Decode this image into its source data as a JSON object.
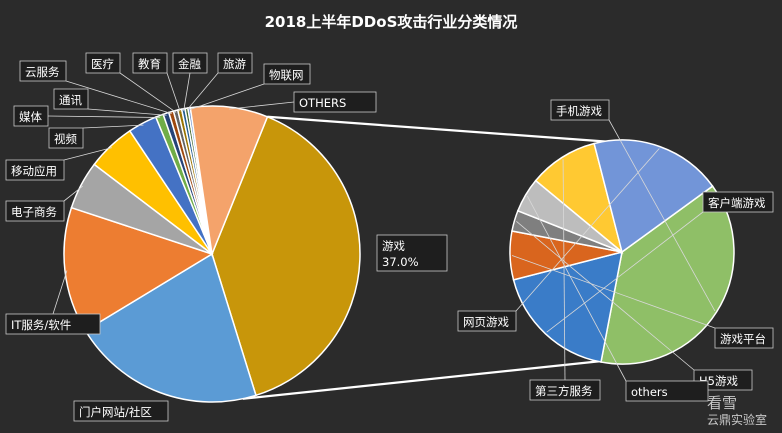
{
  "chart_data": {
    "type": "pie-of-pie",
    "title": "2018上半年DDoS攻击行业分类情况",
    "main_pie": {
      "slices": [
        {
          "name": "游戏",
          "value": 37.0,
          "label_pct": "37.0%",
          "color": "#C8960A"
        },
        {
          "name": "门户网站/社区",
          "value": 20.0,
          "color": "#5B9BD5"
        },
        {
          "name": "IT服务/软件",
          "value": 13.0,
          "color": "#ED7D31"
        },
        {
          "name": "电子商务",
          "value": 5.0,
          "color": "#A5A5A5"
        },
        {
          "name": "移动应用",
          "value": 5.0,
          "color": "#FFC000"
        },
        {
          "name": "视频",
          "value": 3.0,
          "color": "#4472C4"
        },
        {
          "name": "媒体",
          "value": 0.8,
          "color": "#70AD47"
        },
        {
          "name": "通讯",
          "value": 0.6,
          "color": "#264478"
        },
        {
          "name": "云服务",
          "value": 0.5,
          "color": "#9E480E"
        },
        {
          "name": "医疗",
          "value": 0.45,
          "color": "#636363"
        },
        {
          "name": "教育",
          "value": 0.4,
          "color": "#997300"
        },
        {
          "name": "金融",
          "value": 0.35,
          "color": "#255E91"
        },
        {
          "name": "旅游",
          "value": 0.3,
          "color": "#43682B"
        },
        {
          "name": "物联网",
          "value": 0.25,
          "color": "#698ED0"
        },
        {
          "name": "OTHERS",
          "value": 8.0,
          "color": "#F4A36B"
        }
      ]
    },
    "secondary_pie": {
      "breakdown_of": "OTHERS",
      "slices": [
        {
          "name": "手机游戏",
          "value": 38.0,
          "color": "#8FBF67"
        },
        {
          "name": "客户端游戏",
          "value": 18.0,
          "color": "#3A7CC8"
        },
        {
          "name": "游戏平台",
          "value": 7.0,
          "color": "#D9651E"
        },
        {
          "name": "H5游戏",
          "value": 3.0,
          "color": "#7F7F7F"
        },
        {
          "name": "others",
          "value": 5.0,
          "color": "#BDBDBD"
        },
        {
          "name": "第三方服务",
          "value": 10.0,
          "color": "#FFC932"
        },
        {
          "name": "网页游戏",
          "value": 19.0,
          "color": "#7295D8"
        }
      ]
    }
  },
  "watermark": {
    "line1": "看雪",
    "line2": "云鼎实验室"
  }
}
